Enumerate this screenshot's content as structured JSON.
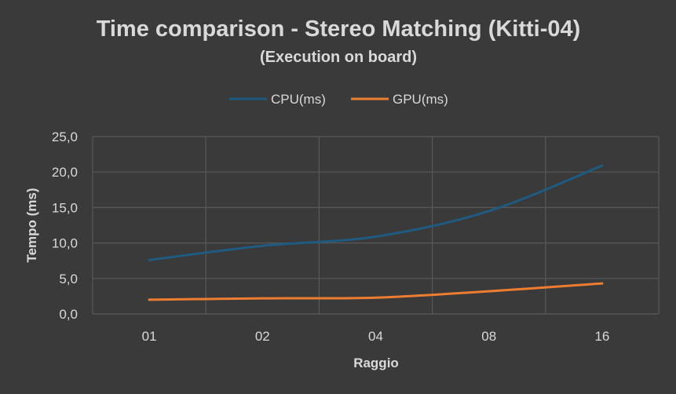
{
  "chart_data": {
    "type": "line",
    "title": "Time comparison - Stereo Matching (Kitti-04)",
    "subtitle": "(Execution on board)",
    "xlabel": "Raggio",
    "ylabel": "Tempo (ms)",
    "categories": [
      "01",
      "02",
      "04",
      "08",
      "16"
    ],
    "yticks": [
      "0,0",
      "5,0",
      "10,0",
      "15,0",
      "20,0",
      "25,0"
    ],
    "ylim": [
      0,
      25
    ],
    "grid": true,
    "legend_position": "top",
    "series": [
      {
        "name": "CPU(ms)",
        "color": "#1f5b80",
        "values": [
          7.6,
          9.6,
          10.9,
          14.5,
          20.9
        ]
      },
      {
        "name": "GPU(ms)",
        "color": "#ed7d31",
        "values": [
          2.0,
          2.2,
          2.3,
          3.2,
          4.3
        ]
      }
    ]
  }
}
